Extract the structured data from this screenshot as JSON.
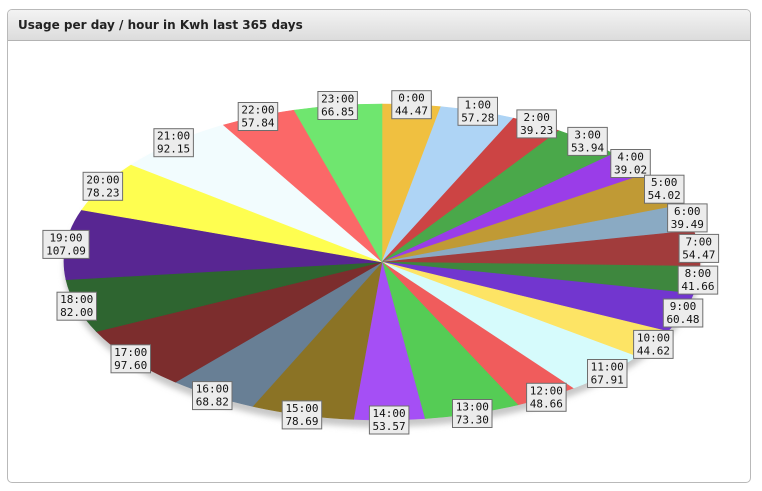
{
  "panel": {
    "title": "Usage per day / hour in Kwh last 365 days"
  },
  "chart_data": {
    "type": "pie",
    "title": "Usage per day / hour in Kwh last 365 days",
    "categories": [
      "0:00",
      "1:00",
      "2:00",
      "3:00",
      "4:00",
      "5:00",
      "6:00",
      "7:00",
      "8:00",
      "9:00",
      "10:00",
      "11:00",
      "12:00",
      "13:00",
      "14:00",
      "15:00",
      "16:00",
      "17:00",
      "18:00",
      "19:00",
      "20:00",
      "21:00",
      "22:00",
      "23:00"
    ],
    "values": [
      44.47,
      57.28,
      39.23,
      53.94,
      39.02,
      54.02,
      39.49,
      54.47,
      41.66,
      60.48,
      44.62,
      67.91,
      48.66,
      73.3,
      53.57,
      78.69,
      68.82,
      97.6,
      82.0,
      107.09,
      78.23,
      92.15,
      57.84,
      66.85
    ],
    "value_labels": [
      "44.47",
      "57.28",
      "39.23",
      "53.94",
      "39.02",
      "54.02",
      "39.49",
      "54.47",
      "41.66",
      "60.48",
      "44.62",
      "67.91",
      "48.66",
      "73.30",
      "53.57",
      "78.69",
      "68.82",
      "97.60",
      "82.00",
      "107.09",
      "78.23",
      "92.15",
      "57.84",
      "66.85"
    ],
    "colors": [
      "#f0c040",
      "#aed4f5",
      "#cc4444",
      "#4aa84a",
      "#9a3de8",
      "#c09a35",
      "#8aaac3",
      "#a13c3c",
      "#3e873e",
      "#7236cf",
      "#fde465",
      "#d6fbfc",
      "#f05c5c",
      "#55cc55",
      "#a54ff5",
      "#8b7325",
      "#687f95",
      "#7c2d2d",
      "#2e6530",
      "#582692",
      "#fefe50",
      "#f2fcfe",
      "#fb6868",
      "#6fe66f"
    ],
    "legend": "none"
  }
}
